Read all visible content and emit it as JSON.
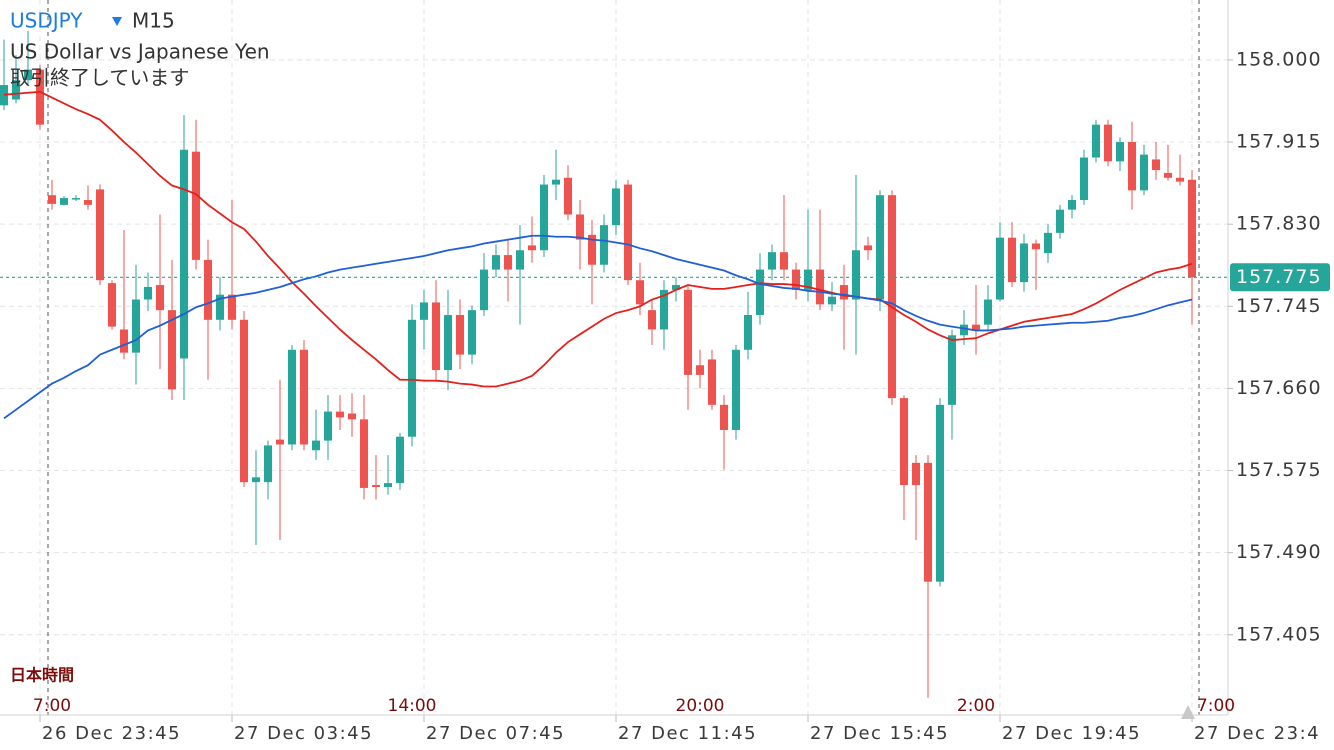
{
  "header": {
    "symbol": "USDJPY",
    "timeframe": "M15",
    "description": "US Dollar vs Japanese Yen",
    "status": "取引終了しています"
  },
  "chart_data": {
    "type": "candlestick",
    "timezone_label": "日本時間",
    "categories": [
      null,
      null,
      null,
      "26 Dec 23:45",
      null,
      null,
      null,
      null,
      null,
      null,
      null,
      null,
      null,
      null,
      null,
      null,
      null,
      null,
      null,
      "27 Dec 03:45",
      null,
      null,
      null,
      null,
      null,
      null,
      null,
      null,
      null,
      null,
      null,
      null,
      null,
      null,
      null,
      "27 Dec 07:45",
      null,
      null,
      null,
      null,
      null,
      null,
      null,
      null,
      null,
      null,
      null,
      null,
      null,
      null,
      null,
      "27 Dec 11:45",
      null,
      null,
      null,
      null,
      null,
      null,
      null,
      null,
      null,
      null,
      null,
      null,
      null,
      null,
      null,
      "27 Dec 15:45",
      null,
      null,
      null,
      null,
      null,
      null,
      null,
      null,
      null,
      null,
      null,
      null,
      null,
      null,
      null,
      "27 Dec 19:45",
      null,
      null,
      null,
      null,
      null,
      null,
      null,
      null,
      null,
      null,
      null,
      null,
      null,
      null,
      null,
      "27 Dec 23:4",
      null,
      null
    ],
    "session_labels": [
      null,
      null,
      null,
      null,
      "7:00",
      null,
      null,
      null,
      null,
      null,
      null,
      null,
      null,
      null,
      null,
      null,
      null,
      null,
      null,
      null,
      null,
      null,
      null,
      null,
      null,
      null,
      null,
      null,
      null,
      null,
      null,
      null,
      null,
      null,
      "14:00",
      null,
      null,
      null,
      null,
      null,
      null,
      null,
      null,
      null,
      null,
      null,
      null,
      null,
      null,
      null,
      null,
      null,
      null,
      null,
      null,
      null,
      null,
      null,
      "20:00",
      null,
      null,
      null,
      null,
      null,
      null,
      null,
      null,
      null,
      null,
      null,
      null,
      null,
      null,
      null,
      null,
      null,
      null,
      null,
      null,
      null,
      null,
      "2:00",
      null,
      null,
      null,
      null,
      null,
      null,
      null,
      null,
      null,
      null,
      null,
      null,
      null,
      null,
      null,
      null,
      null,
      null,
      null,
      "7:00"
    ],
    "open": [
      157.953,
      157.959,
      157.979,
      157.99,
      157.86,
      157.85,
      157.856,
      157.855,
      157.866,
      157.769,
      157.721,
      157.697,
      157.752,
      157.767,
      157.741,
      157.691,
      157.905,
      157.793,
      157.731,
      157.757,
      157.731,
      157.563,
      157.563,
      157.607,
      157.602,
      157.7,
      157.596,
      157.606,
      157.636,
      157.634,
      157.628,
      157.56,
      157.558,
      157.562,
      157.61,
      157.731,
      157.749,
      157.679,
      157.736,
      157.695,
      157.741,
      157.783,
      157.798,
      157.783,
      157.808,
      157.803,
      157.871,
      157.878,
      157.84,
      157.819,
      157.788,
      157.829,
      157.871,
      157.772,
      157.741,
      157.721,
      157.762,
      157.762,
      157.684,
      157.69,
      157.643,
      157.617,
      157.7,
      157.736,
      157.783,
      157.801,
      157.783,
      157.762,
      157.783,
      157.747,
      157.767,
      157.752,
      157.808,
      157.752,
      157.86,
      157.65,
      157.583,
      157.583,
      157.46,
      157.643,
      157.715,
      157.726,
      157.726,
      157.752,
      157.816,
      157.77,
      157.81,
      157.8,
      157.821,
      157.845,
      157.855,
      157.899,
      157.933,
      157.895,
      157.915,
      157.865,
      157.897,
      157.883,
      157.878,
      157.876,
      null,
      null
    ],
    "high": [
      158.021,
      158.005,
      158.03,
      157.995,
      157.876,
      157.859,
      157.86,
      157.87,
      157.871,
      157.772,
      157.824,
      157.788,
      157.78,
      157.84,
      157.793,
      157.943,
      157.938,
      157.814,
      157.775,
      157.855,
      157.74,
      157.596,
      157.606,
      157.669,
      157.705,
      157.71,
      157.638,
      157.653,
      157.653,
      157.655,
      157.653,
      157.591,
      157.591,
      157.614,
      157.747,
      157.762,
      157.772,
      157.762,
      157.752,
      157.746,
      157.8,
      157.809,
      157.815,
      157.829,
      157.838,
      157.881,
      157.907,
      157.891,
      157.855,
      157.834,
      157.84,
      157.876,
      157.876,
      157.79,
      157.752,
      157.772,
      157.775,
      157.767,
      157.7,
      157.7,
      157.653,
      157.705,
      157.76,
      157.8,
      157.809,
      157.86,
      157.79,
      157.845,
      157.845,
      157.77,
      157.788,
      157.881,
      157.817,
      157.865,
      157.865,
      157.653,
      157.591,
      157.591,
      157.65,
      157.721,
      157.741,
      157.767,
      157.767,
      157.832,
      157.832,
      157.82,
      157.814,
      157.83,
      157.85,
      157.86,
      157.907,
      157.938,
      157.938,
      157.92,
      157.936,
      157.912,
      157.915,
      157.912,
      157.902,
      157.886,
      null,
      null
    ],
    "low": [
      157.948,
      157.955,
      157.975,
      157.928,
      157.845,
      157.849,
      157.854,
      157.845,
      157.767,
      157.721,
      157.69,
      157.664,
      157.74,
      157.68,
      157.648,
      157.648,
      157.783,
      157.669,
      157.72,
      157.721,
      157.558,
      157.498,
      157.545,
      157.503,
      157.596,
      157.596,
      157.586,
      157.586,
      157.617,
      157.61,
      157.545,
      157.545,
      157.55,
      157.555,
      157.6,
      157.7,
      157.669,
      157.658,
      157.68,
      157.685,
      157.735,
      157.775,
      157.75,
      157.726,
      157.79,
      157.796,
      157.855,
      157.834,
      157.783,
      157.747,
      157.78,
      157.819,
      157.767,
      157.736,
      157.705,
      157.7,
      157.75,
      157.638,
      157.66,
      157.638,
      157.576,
      157.607,
      157.69,
      157.726,
      157.772,
      157.772,
      157.752,
      157.75,
      157.741,
      157.74,
      157.7,
      157.695,
      157.793,
      157.74,
      157.643,
      157.524,
      157.503,
      157.34,
      157.455,
      157.607,
      157.705,
      157.695,
      157.721,
      157.75,
      157.765,
      157.76,
      157.762,
      157.79,
      157.815,
      157.836,
      157.85,
      157.894,
      157.89,
      157.885,
      157.845,
      157.86,
      157.876,
      157.875,
      157.87,
      157.726,
      null,
      null
    ],
    "close": [
      157.974,
      157.979,
      157.99,
      157.933,
      157.851,
      157.857,
      157.857,
      157.85,
      157.772,
      157.724,
      157.697,
      157.752,
      157.765,
      157.741,
      157.659,
      157.907,
      157.793,
      157.731,
      157.757,
      157.731,
      157.563,
      157.568,
      157.601,
      157.602,
      157.7,
      157.602,
      157.606,
      157.636,
      157.63,
      157.628,
      157.557,
      157.558,
      157.562,
      157.61,
      157.731,
      157.749,
      157.679,
      157.736,
      157.695,
      157.741,
      157.783,
      157.798,
      157.783,
      157.803,
      157.803,
      157.871,
      157.876,
      157.84,
      157.814,
      157.788,
      157.829,
      157.867,
      157.772,
      157.747,
      157.721,
      157.762,
      157.767,
      157.674,
      157.674,
      157.643,
      157.617,
      157.7,
      157.736,
      157.783,
      157.801,
      157.783,
      157.762,
      157.783,
      157.747,
      157.755,
      157.752,
      157.803,
      157.803,
      157.86,
      157.65,
      157.56,
      157.56,
      157.46,
      157.643,
      157.715,
      157.726,
      157.721,
      157.752,
      157.816,
      157.77,
      157.81,
      157.804,
      157.821,
      157.845,
      157.855,
      157.899,
      157.933,
      157.895,
      157.915,
      157.865,
      157.902,
      157.886,
      157.878,
      157.874,
      157.775,
      null,
      null
    ],
    "up_color": "#26a69a",
    "down_color": "#ef5350",
    "series": [
      {
        "color": "#e3211c",
        "values": [
          157.964,
          157.965,
          157.966,
          157.967,
          157.961,
          157.955,
          157.949,
          157.944,
          157.938,
          157.927,
          157.915,
          157.904,
          157.892,
          157.88,
          157.87,
          157.866,
          157.861,
          157.85,
          157.841,
          157.832,
          157.825,
          157.812,
          157.797,
          157.784,
          157.77,
          157.758,
          157.745,
          157.733,
          157.721,
          157.71,
          157.7,
          157.69,
          157.679,
          157.669,
          157.669,
          157.668,
          157.668,
          157.667,
          157.665,
          157.664,
          157.662,
          157.662,
          157.665,
          157.668,
          157.673,
          157.684,
          157.697,
          157.708,
          157.716,
          157.724,
          157.732,
          157.738,
          157.741,
          157.745,
          157.752,
          157.756,
          157.762,
          157.767,
          157.765,
          157.763,
          157.763,
          157.765,
          157.767,
          157.769,
          157.768,
          157.768,
          157.767,
          157.765,
          157.762,
          157.759,
          157.756,
          157.755,
          157.753,
          157.752,
          157.744,
          157.736,
          157.729,
          157.721,
          157.715,
          157.71,
          157.711,
          157.712,
          157.717,
          157.721,
          157.725,
          157.729,
          157.731,
          157.733,
          157.735,
          157.737,
          157.742,
          157.748,
          157.755,
          157.762,
          157.768,
          157.774,
          157.78,
          157.783,
          157.785,
          157.789,
          null,
          null
        ]
      },
      {
        "color": "#1f5fd8",
        "values": [
          157.629,
          157.638,
          157.647,
          157.656,
          157.665,
          157.671,
          157.678,
          157.684,
          157.695,
          157.7,
          157.705,
          157.71,
          157.72,
          157.725,
          157.731,
          157.737,
          157.744,
          157.748,
          157.753,
          157.755,
          157.757,
          157.759,
          157.762,
          157.765,
          157.769,
          157.773,
          157.776,
          157.78,
          157.783,
          157.785,
          157.787,
          157.789,
          157.791,
          157.793,
          157.795,
          157.797,
          157.8,
          157.803,
          157.805,
          157.807,
          157.81,
          157.812,
          157.814,
          157.816,
          157.818,
          157.818,
          157.817,
          157.817,
          157.816,
          157.814,
          157.813,
          157.811,
          157.809,
          157.805,
          157.802,
          157.798,
          157.794,
          157.791,
          157.788,
          157.785,
          157.782,
          157.777,
          157.773,
          157.768,
          157.766,
          157.764,
          157.763,
          157.761,
          157.76,
          157.758,
          157.757,
          157.755,
          157.753,
          157.751,
          157.748,
          157.741,
          157.735,
          157.73,
          157.726,
          157.724,
          157.722,
          157.72,
          157.72,
          157.721,
          157.722,
          157.724,
          157.725,
          157.726,
          157.727,
          157.728,
          157.728,
          157.729,
          157.73,
          157.733,
          157.735,
          157.738,
          157.742,
          157.746,
          157.749,
          157.752,
          null,
          null
        ]
      }
    ],
    "last_price": 157.775,
    "last_price_color": "#26a69a",
    "ylim": [
      157.322,
      158.062
    ],
    "yticks": [
      {
        "value": 158,
        "label": "158.000"
      },
      157.915,
      {
        "value": 157.83,
        "label": "157.830"
      },
      157.745,
      {
        "value": 157.66,
        "label": "157.660"
      },
      157.575,
      {
        "value": 157.49,
        "label": "157.490"
      },
      157.405
    ],
    "grid": true
  }
}
